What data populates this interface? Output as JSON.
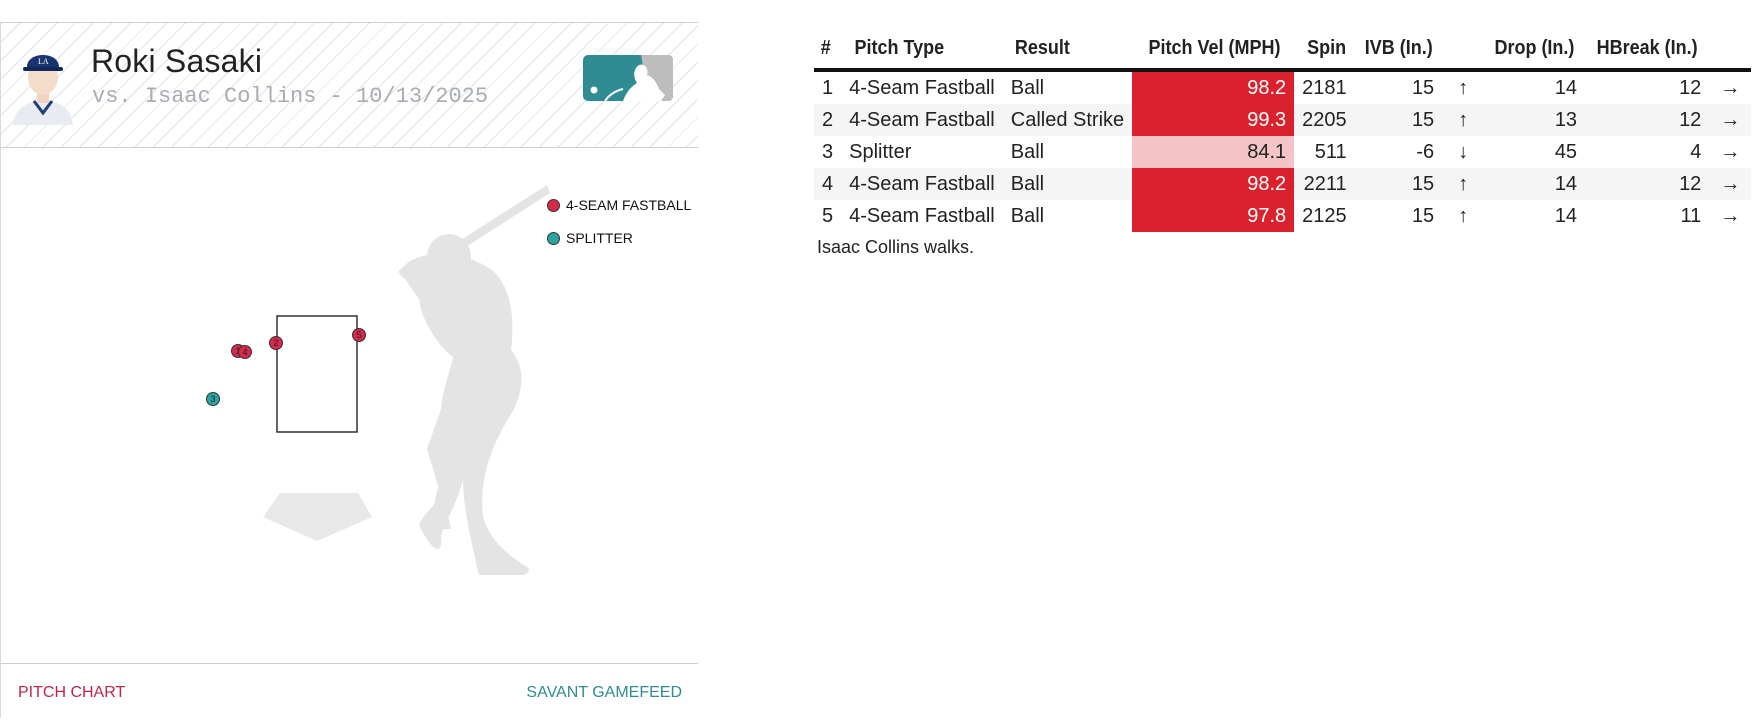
{
  "header": {
    "player_name": "Roki Sasaki",
    "matchup": "vs. Isaac Collins - 10/13/2025"
  },
  "legend": [
    {
      "label": "4-SEAM FASTBALL",
      "color": "#d6294b"
    },
    {
      "label": "SPLITTER",
      "color": "#2aa6a2"
    }
  ],
  "pitch_markers": [
    {
      "number": "1",
      "type": "4-SEAM FASTBALL"
    },
    {
      "number": "2",
      "type": "4-SEAM FASTBALL"
    },
    {
      "number": "3",
      "type": "SPLITTER"
    },
    {
      "number": "4",
      "type": "4-SEAM FASTBALL"
    },
    {
      "number": "5",
      "type": "4-SEAM FASTBALL"
    }
  ],
  "footer": {
    "left_link": "PITCH CHART",
    "right_link": "SAVANT GAMEFEED"
  },
  "table": {
    "columns": [
      "#",
      "Pitch Type",
      "Result",
      "Pitch Vel (MPH)",
      "Spin",
      "IVB (In.)",
      "",
      "Drop (In.)",
      "HBreak (In.)",
      ""
    ],
    "rows": [
      {
        "n": "1",
        "type": "4-Seam Fastball",
        "result": "Ball",
        "vel": "98.2",
        "spin": "2181",
        "ivb": "15",
        "ivb_arrow": "↑",
        "drop": "14",
        "hbreak": "12",
        "h_arrow": "→",
        "vel_color": "#d9222e",
        "vel_text_color": "#ffffff"
      },
      {
        "n": "2",
        "type": "4-Seam Fastball",
        "result": "Called Strike",
        "vel": "99.3",
        "spin": "2205",
        "ivb": "15",
        "ivb_arrow": "↑",
        "drop": "13",
        "hbreak": "12",
        "h_arrow": "→",
        "vel_color": "#d9222e",
        "vel_text_color": "#ffffff"
      },
      {
        "n": "3",
        "type": "Splitter",
        "result": "Ball",
        "vel": "84.1",
        "spin": "511",
        "ivb": "-6",
        "ivb_arrow": "↓",
        "drop": "45",
        "hbreak": "4",
        "h_arrow": "→",
        "vel_color": "#f5c4c7",
        "vel_text_color": "#222222"
      },
      {
        "n": "4",
        "type": "4-Seam Fastball",
        "result": "Ball",
        "vel": "98.2",
        "spin": "2211",
        "ivb": "15",
        "ivb_arrow": "↑",
        "drop": "14",
        "hbreak": "12",
        "h_arrow": "→",
        "vel_color": "#d9222e",
        "vel_text_color": "#ffffff"
      },
      {
        "n": "5",
        "type": "4-Seam Fastball",
        "result": "Ball",
        "vel": "97.8",
        "spin": "2125",
        "ivb": "15",
        "ivb_arrow": "↑",
        "drop": "14",
        "hbreak": "11",
        "h_arrow": "→",
        "vel_color": "#d9222e",
        "vel_text_color": "#ffffff"
      }
    ],
    "note": "Isaac Collins walks."
  }
}
